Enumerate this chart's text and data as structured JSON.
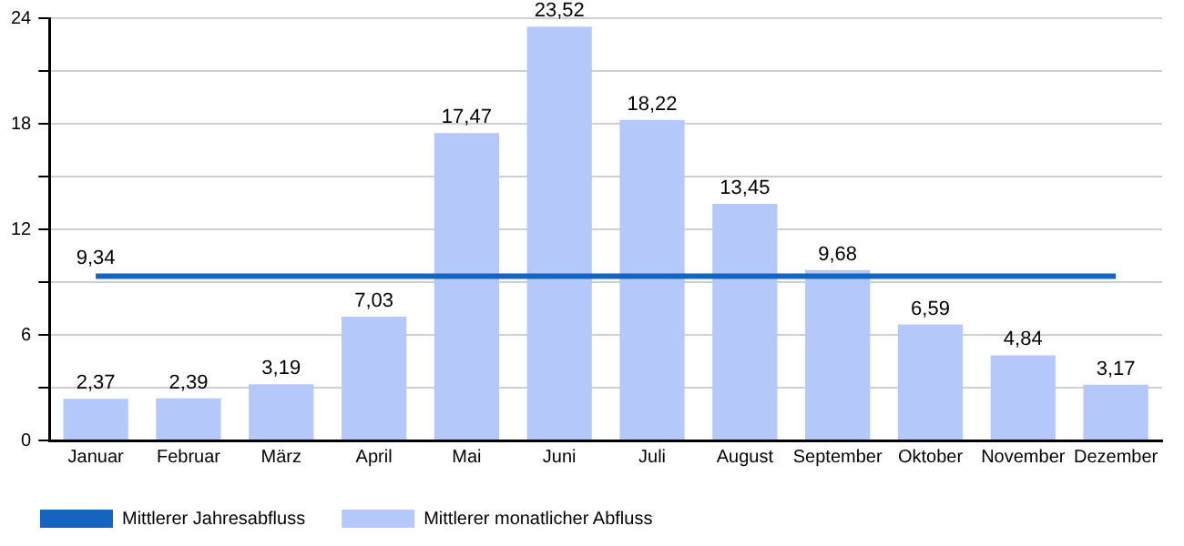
{
  "chart_data": {
    "type": "bar",
    "categories": [
      "Januar",
      "Februar",
      "März",
      "April",
      "Mai",
      "Juni",
      "Juli",
      "August",
      "September",
      "Oktober",
      "November",
      "Dezember"
    ],
    "series": [
      {
        "name": "Mittlerer Jahresabfluss",
        "type": "line",
        "color": "#1565c0",
        "values": [
          9.34,
          9.34,
          9.34,
          9.34,
          9.34,
          9.34,
          9.34,
          9.34,
          9.34,
          9.34,
          9.34,
          9.34
        ],
        "value_labels": [
          "9,34",
          null,
          null,
          null,
          null,
          null,
          null,
          null,
          null,
          null,
          null,
          null
        ]
      },
      {
        "name": "Mittlerer monatlicher Abfluss",
        "color": "#b4c9f9",
        "values": [
          2.37,
          2.39,
          3.19,
          7.03,
          17.47,
          23.52,
          18.22,
          13.45,
          9.68,
          6.59,
          4.84,
          3.17
        ],
        "value_labels": [
          "2,37",
          "2,39",
          "3,19",
          "7,03",
          "17,47",
          "23,52",
          "18,22",
          "13,45",
          "9,68",
          "6,59",
          "4,84",
          "3,17"
        ]
      }
    ],
    "ylim": [
      0,
      24
    ],
    "yticks": [
      0,
      {
        "value": 3,
        "label": null
      },
      6,
      {
        "value": 9,
        "label": null
      },
      12,
      {
        "value": 15,
        "label": null
      },
      18,
      {
        "value": 21,
        "label": null
      },
      24
    ],
    "grid": "y",
    "legend": "bottom",
    "marker": "none",
    "line_style": "solid"
  }
}
